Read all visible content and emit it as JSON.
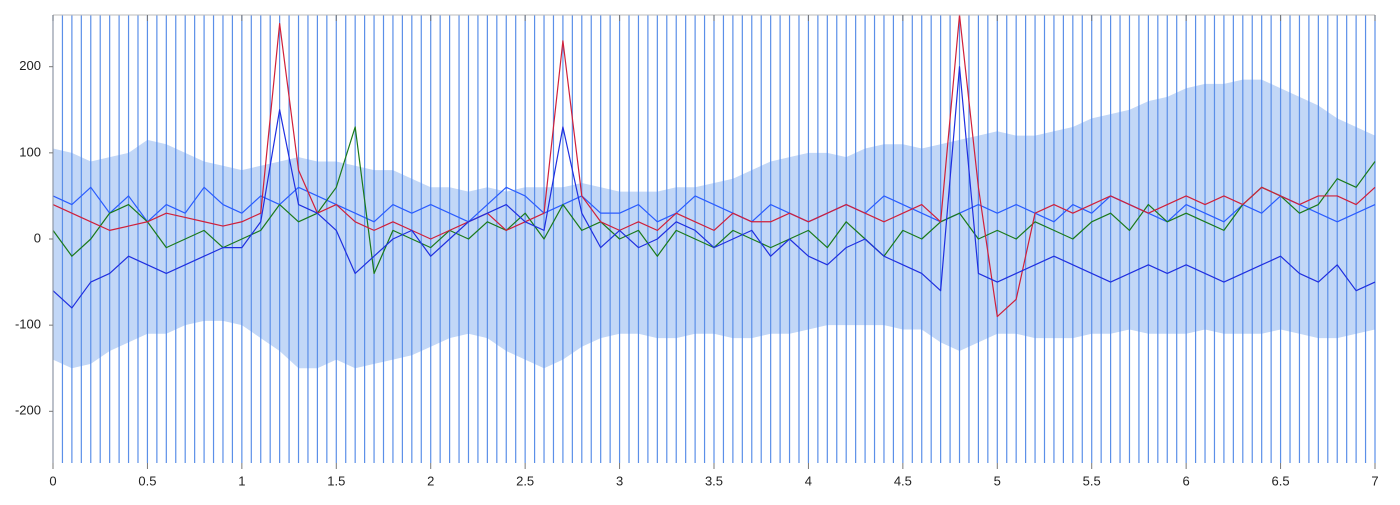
{
  "chart_data": {
    "type": "line",
    "xlim": [
      0,
      7
    ],
    "ylim": [
      -260,
      260
    ],
    "xticks": [
      0,
      0.5,
      1,
      1.5,
      2,
      2.5,
      3,
      3.5,
      4,
      4.5,
      5,
      5.5,
      6,
      6.5,
      7
    ],
    "yticks": [
      -200,
      -100,
      0,
      100,
      200
    ],
    "markers": {
      "color": "#5b8fe8",
      "x": [
        0,
        0.05,
        0.1,
        0.15,
        0.2,
        0.25,
        0.3,
        0.35,
        0.4,
        0.45,
        0.5,
        0.55,
        0.6,
        0.65,
        0.7,
        0.75,
        0.8,
        0.85,
        0.9,
        0.95,
        1,
        1.05,
        1.1,
        1.15,
        1.2,
        1.25,
        1.3,
        1.35,
        1.4,
        1.45,
        1.5,
        1.55,
        1.6,
        1.65,
        1.7,
        1.75,
        1.8,
        1.85,
        1.9,
        1.95,
        2,
        2.05,
        2.1,
        2.15,
        2.2,
        2.25,
        2.3,
        2.35,
        2.4,
        2.45,
        2.5,
        2.55,
        2.6,
        2.65,
        2.7,
        2.75,
        2.8,
        2.85,
        2.9,
        2.95,
        3,
        3.05,
        3.1,
        3.15,
        3.2,
        3.25,
        3.3,
        3.35,
        3.4,
        3.45,
        3.5,
        3.55,
        3.6,
        3.65,
        3.7,
        3.75,
        3.8,
        3.85,
        3.9,
        3.95,
        4,
        4.05,
        4.1,
        4.15,
        4.2,
        4.25,
        4.3,
        4.35,
        4.4,
        4.45,
        4.5,
        4.55,
        4.6,
        4.65,
        4.7,
        4.75,
        4.8,
        4.85,
        4.9,
        4.95,
        5,
        5.05,
        5.1,
        5.15,
        5.2,
        5.25,
        5.3,
        5.35,
        5.4,
        5.45,
        5.5,
        5.55,
        5.6,
        5.65,
        5.7,
        5.75,
        5.8,
        5.85,
        5.9,
        5.95,
        6,
        6.05,
        6.1,
        6.15,
        6.2,
        6.25,
        6.3,
        6.35,
        6.4,
        6.45,
        6.5,
        6.55,
        6.6,
        6.65,
        6.7,
        6.75,
        6.8,
        6.85,
        6.9,
        6.95,
        7
      ]
    },
    "x": [
      0,
      0.1,
      0.2,
      0.3,
      0.4,
      0.5,
      0.6,
      0.7,
      0.8,
      0.9,
      1,
      1.1,
      1.2,
      1.3,
      1.4,
      1.5,
      1.6,
      1.7,
      1.8,
      1.9,
      2,
      2.1,
      2.2,
      2.3,
      2.4,
      2.5,
      2.6,
      2.7,
      2.8,
      2.9,
      3,
      3.1,
      3.2,
      3.3,
      3.4,
      3.5,
      3.6,
      3.7,
      3.8,
      3.9,
      4,
      4.1,
      4.2,
      4.3,
      4.4,
      4.5,
      4.6,
      4.7,
      4.8,
      4.9,
      5,
      5.1,
      5.2,
      5.3,
      5.4,
      5.5,
      5.6,
      5.7,
      5.8,
      5.9,
      6,
      6.1,
      6.2,
      6.3,
      6.4,
      6.5,
      6.6,
      6.7,
      6.8,
      6.9,
      7
    ],
    "band": {
      "color": "#8fb6f0",
      "upper": [
        105,
        100,
        90,
        95,
        100,
        115,
        110,
        100,
        90,
        85,
        80,
        85,
        90,
        95,
        90,
        90,
        85,
        80,
        80,
        70,
        60,
        60,
        55,
        60,
        55,
        60,
        60,
        60,
        65,
        60,
        55,
        55,
        55,
        60,
        60,
        65,
        70,
        80,
        90,
        95,
        100,
        100,
        95,
        105,
        110,
        110,
        105,
        110,
        115,
        120,
        125,
        120,
        120,
        125,
        130,
        140,
        145,
        150,
        160,
        165,
        175,
        180,
        180,
        185,
        185,
        175,
        165,
        155,
        140,
        130,
        120
      ],
      "lower": [
        -140,
        -150,
        -145,
        -130,
        -120,
        -110,
        -110,
        -100,
        -95,
        -95,
        -100,
        -115,
        -130,
        -150,
        -150,
        -140,
        -150,
        -145,
        -140,
        -135,
        -125,
        -115,
        -110,
        -115,
        -130,
        -140,
        -150,
        -140,
        -125,
        -115,
        -110,
        -110,
        -115,
        -115,
        -110,
        -110,
        -115,
        -115,
        -110,
        -110,
        -105,
        -100,
        -100,
        -100,
        -100,
        -105,
        -105,
        -120,
        -130,
        -120,
        -110,
        -110,
        -115,
        -115,
        -115,
        -110,
        -110,
        -105,
        -110,
        -110,
        -110,
        -105,
        -110,
        -110,
        -110,
        -105,
        -110,
        -115,
        -115,
        -110,
        -105
      ]
    },
    "series": [
      {
        "color": "#2a5cff",
        "values": [
          50,
          40,
          60,
          30,
          50,
          20,
          40,
          30,
          60,
          40,
          30,
          50,
          40,
          60,
          50,
          40,
          30,
          20,
          40,
          30,
          40,
          30,
          20,
          40,
          60,
          50,
          30,
          40,
          50,
          30,
          30,
          40,
          20,
          30,
          50,
          40,
          30,
          20,
          40,
          30,
          20,
          30,
          40,
          30,
          50,
          40,
          30,
          20,
          30,
          40,
          30,
          40,
          30,
          20,
          40,
          30,
          50,
          40,
          30,
          20,
          40,
          30,
          20,
          40,
          30,
          50,
          40,
          30,
          20,
          30,
          40
        ]
      },
      {
        "color": "#1a7a1a",
        "values": [
          10,
          -20,
          0,
          30,
          40,
          20,
          -10,
          0,
          10,
          -10,
          0,
          10,
          40,
          20,
          30,
          60,
          130,
          -40,
          10,
          0,
          -10,
          10,
          0,
          20,
          10,
          30,
          0,
          40,
          10,
          20,
          0,
          10,
          -20,
          10,
          0,
          -10,
          10,
          0,
          -10,
          0,
          10,
          -10,
          20,
          0,
          -20,
          10,
          0,
          20,
          30,
          0,
          10,
          0,
          20,
          10,
          0,
          20,
          30,
          10,
          40,
          20,
          30,
          20,
          10,
          40,
          60,
          50,
          30,
          40,
          70,
          60,
          90
        ]
      },
      {
        "color": "#d0203a",
        "values": [
          40,
          30,
          20,
          10,
          15,
          20,
          30,
          25,
          20,
          15,
          20,
          30,
          250,
          80,
          30,
          40,
          20,
          10,
          20,
          10,
          0,
          10,
          20,
          30,
          10,
          20,
          30,
          230,
          50,
          20,
          10,
          20,
          10,
          30,
          20,
          10,
          30,
          20,
          20,
          30,
          20,
          30,
          40,
          30,
          20,
          30,
          40,
          20,
          260,
          60,
          -90,
          -70,
          30,
          40,
          30,
          40,
          50,
          40,
          30,
          40,
          50,
          40,
          50,
          40,
          60,
          50,
          40,
          50,
          50,
          40,
          60
        ]
      },
      {
        "color": "#1f2fe0",
        "values": [
          -60,
          -80,
          -50,
          -40,
          -20,
          -30,
          -40,
          -30,
          -20,
          -10,
          -10,
          20,
          150,
          40,
          30,
          10,
          -40,
          -20,
          0,
          10,
          -20,
          0,
          20,
          30,
          40,
          20,
          10,
          130,
          30,
          -10,
          10,
          -10,
          0,
          20,
          10,
          -10,
          0,
          10,
          -20,
          0,
          -20,
          -30,
          -10,
          0,
          -20,
          -30,
          -40,
          -60,
          200,
          -40,
          -50,
          -40,
          -30,
          -20,
          -30,
          -40,
          -50,
          -40,
          -30,
          -40,
          -30,
          -40,
          -50,
          -40,
          -30,
          -20,
          -40,
          -50,
          -30,
          -60,
          -50
        ]
      }
    ]
  }
}
